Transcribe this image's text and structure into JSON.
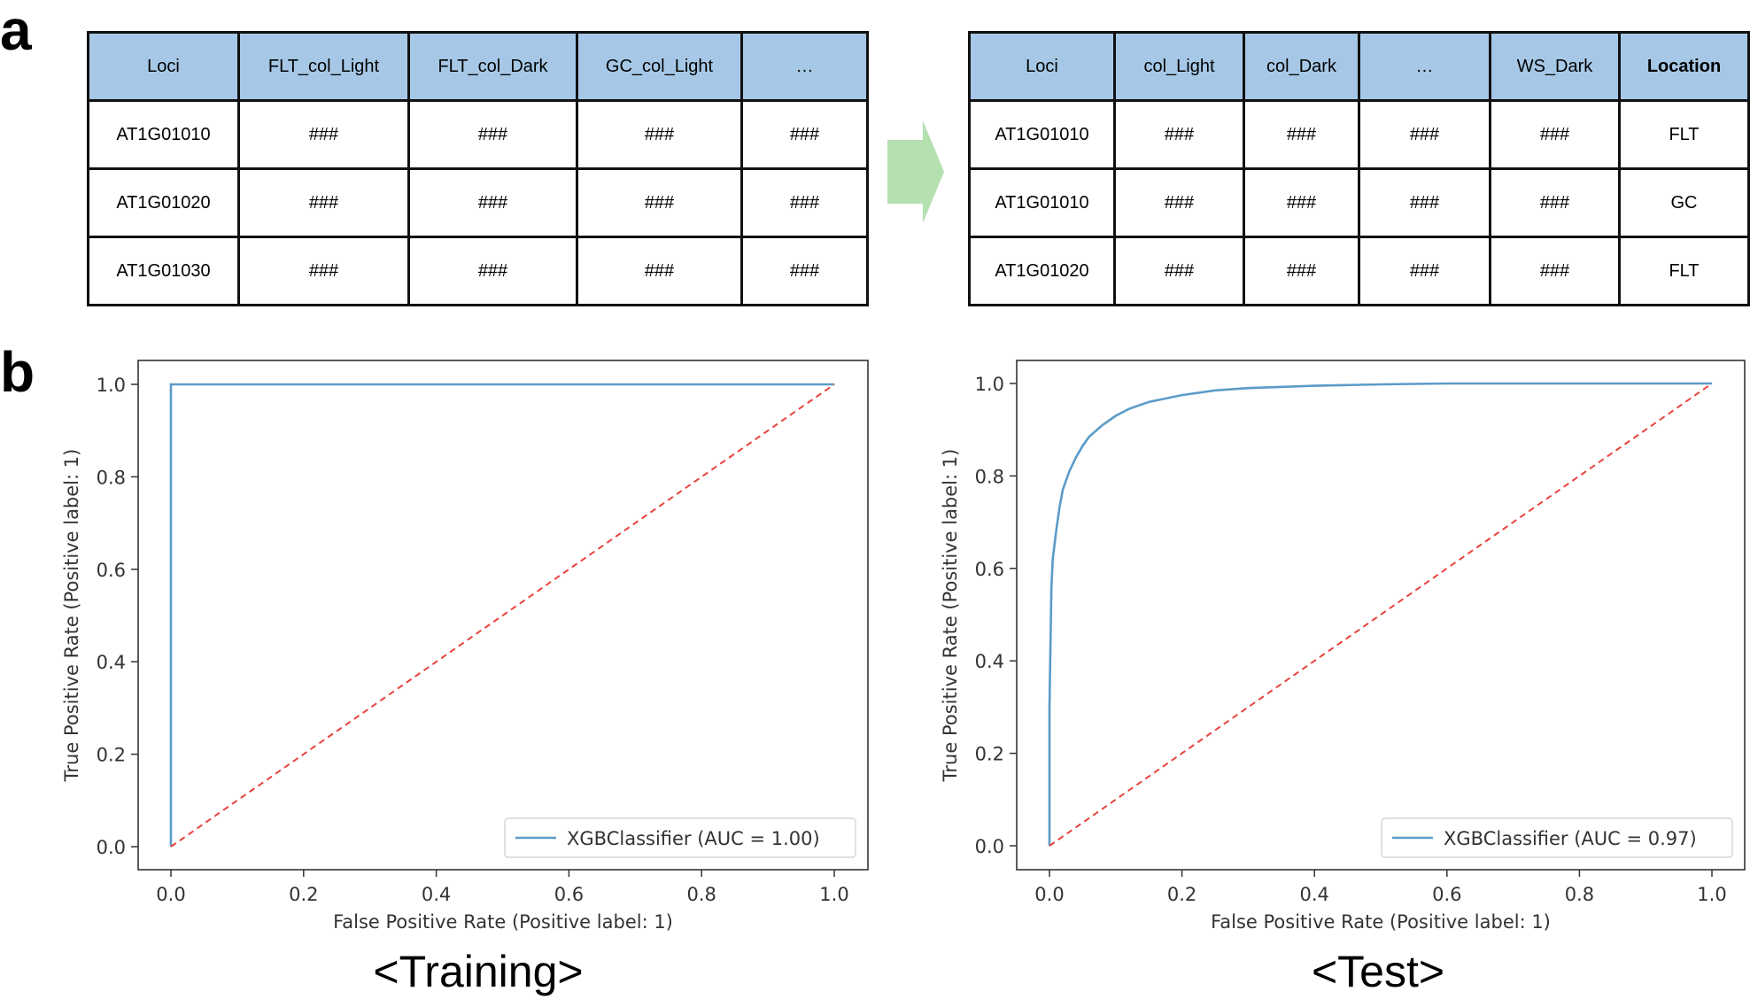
{
  "panel_labels": {
    "a": "a",
    "b": "b"
  },
  "table_left": {
    "headers": [
      "Loci",
      "FLT_col_Light",
      "FLT_col_Dark",
      "GC_col_Light",
      "…"
    ],
    "rows": [
      [
        "AT1G01010",
        "###",
        "###",
        "###",
        "###"
      ],
      [
        "AT1G01020",
        "###",
        "###",
        "###",
        "###"
      ],
      [
        "AT1G01030",
        "###",
        "###",
        "###",
        "###"
      ]
    ]
  },
  "table_right": {
    "headers": [
      "Loci",
      "col_Light",
      "col_Dark",
      "…",
      "WS_Dark",
      "Location"
    ],
    "rows": [
      [
        "AT1G01010",
        "###",
        "###",
        "###",
        "###",
        "FLT"
      ],
      [
        "AT1G01010",
        "###",
        "###",
        "###",
        "###",
        "GC"
      ],
      [
        "AT1G01020",
        "###",
        "###",
        "###",
        "###",
        "FLT"
      ]
    ]
  },
  "colors": {
    "header_fill": "#a6c8e6",
    "arrow": "#b5e0b0",
    "roc_line": "#5b9bc8",
    "chance_line": "#e8433c"
  },
  "chart_data": [
    {
      "type": "line",
      "caption": "<Training>",
      "xlabel": "False Positive Rate (Positive label: 1)",
      "ylabel": "True Positive Rate (Positive label: 1)",
      "xlim": [
        0,
        1
      ],
      "ylim": [
        0,
        1
      ],
      "xticks": [
        "0.0",
        "0.2",
        "0.4",
        "0.6",
        "0.8",
        "1.0"
      ],
      "yticks": [
        "0.0",
        "0.2",
        "0.4",
        "0.6",
        "0.8",
        "1.0"
      ],
      "grid": false,
      "legend_position": "lower-right",
      "series": [
        {
          "name": "XGBClassifier (AUC = 1.00)",
          "color": "#5b9bc8",
          "style": "solid",
          "x": [
            0,
            0,
            1
          ],
          "y": [
            0,
            1,
            1
          ]
        },
        {
          "color": "#e8433c",
          "style": "dashed",
          "x": [
            0,
            1
          ],
          "y": [
            0,
            1
          ]
        }
      ]
    },
    {
      "type": "line",
      "caption": "<Test>",
      "xlabel": "False Positive Rate (Positive label: 1)",
      "ylabel": "True Positive Rate (Positive label: 1)",
      "xlim": [
        0,
        1
      ],
      "ylim": [
        0,
        1
      ],
      "xticks": [
        "0.0",
        "0.2",
        "0.4",
        "0.6",
        "0.8",
        "1.0"
      ],
      "yticks": [
        "0.0",
        "0.2",
        "0.4",
        "0.6",
        "0.8",
        "1.0"
      ],
      "grid": false,
      "legend_position": "lower-right",
      "series": [
        {
          "name": "XGBClassifier (AUC = 0.97)",
          "color": "#5b9bc8",
          "style": "solid",
          "x": [
            0,
            0.0,
            0.003,
            0.005,
            0.01,
            0.015,
            0.02,
            0.03,
            0.04,
            0.05,
            0.06,
            0.08,
            0.1,
            0.12,
            0.15,
            0.2,
            0.25,
            0.3,
            0.4,
            0.5,
            0.6,
            0.8,
            1.0
          ],
          "y": [
            0,
            0.3,
            0.56,
            0.62,
            0.68,
            0.73,
            0.77,
            0.81,
            0.84,
            0.865,
            0.885,
            0.91,
            0.93,
            0.945,
            0.96,
            0.975,
            0.985,
            0.99,
            0.995,
            0.998,
            1.0,
            1.0,
            1.0
          ]
        },
        {
          "color": "#e8433c",
          "style": "dashed",
          "x": [
            0,
            1
          ],
          "y": [
            0,
            1
          ]
        }
      ]
    }
  ]
}
